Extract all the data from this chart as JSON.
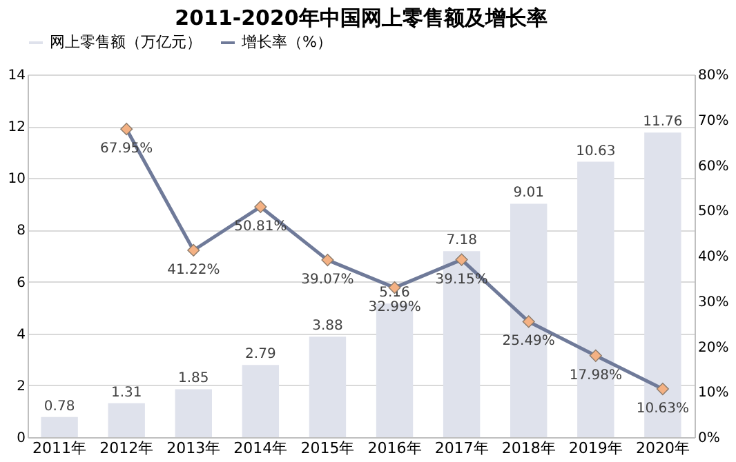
{
  "chart_data": {
    "type": "bar",
    "title": "2011-2020年中国网上零售额及增长率",
    "categories": [
      "2011年",
      "2012年",
      "2013年",
      "2014年",
      "2015年",
      "2016年",
      "2017年",
      "2018年",
      "2019年",
      "2020年"
    ],
    "series": [
      {
        "name": "网上零售额（万亿元）",
        "type": "bar",
        "color": "#dfe2ec",
        "values": [
          0.78,
          1.31,
          1.85,
          2.79,
          3.88,
          5.16,
          7.18,
          9.01,
          10.63,
          11.76
        ]
      },
      {
        "name": "增长率（%）",
        "type": "line",
        "axis": "y2",
        "color": "#6f7a99",
        "colors": [
          null,
          "#f4b183",
          "#f4b183",
          "#f4b183",
          "#f4b183",
          "#f4b183",
          "#f4b183",
          "#f4b183",
          "#f4b183",
          "#f4b183"
        ],
        "marker": "diamond",
        "values": [
          null,
          67.95,
          41.22,
          50.81,
          39.07,
          32.99,
          39.15,
          25.49,
          17.98,
          10.63
        ],
        "value_labels": [
          null,
          "67.95%",
          "41.22%",
          "50.81%",
          "39.07%",
          "32.99%",
          "39.15%",
          "25.49%",
          "17.98%",
          "10.63%"
        ]
      }
    ],
    "data_labels": true,
    "ylim": [
      0,
      14
    ],
    "yticks": [
      0,
      2,
      4,
      6,
      8,
      10,
      12,
      14
    ],
    "y2lim": [
      0,
      80
    ],
    "y2ticks": [
      {
        "value": 0,
        "label": "0%"
      },
      {
        "value": 10,
        "label": "10%"
      },
      {
        "value": 20,
        "label": "20%"
      },
      {
        "value": 30,
        "label": "30%"
      },
      {
        "value": 40,
        "label": "40%"
      },
      {
        "value": 50,
        "label": "50%"
      },
      {
        "value": 60,
        "label": "60%"
      },
      {
        "value": 70,
        "label": "70%"
      },
      {
        "value": 80,
        "label": "80%"
      }
    ],
    "grid": "y",
    "legend": "top"
  }
}
